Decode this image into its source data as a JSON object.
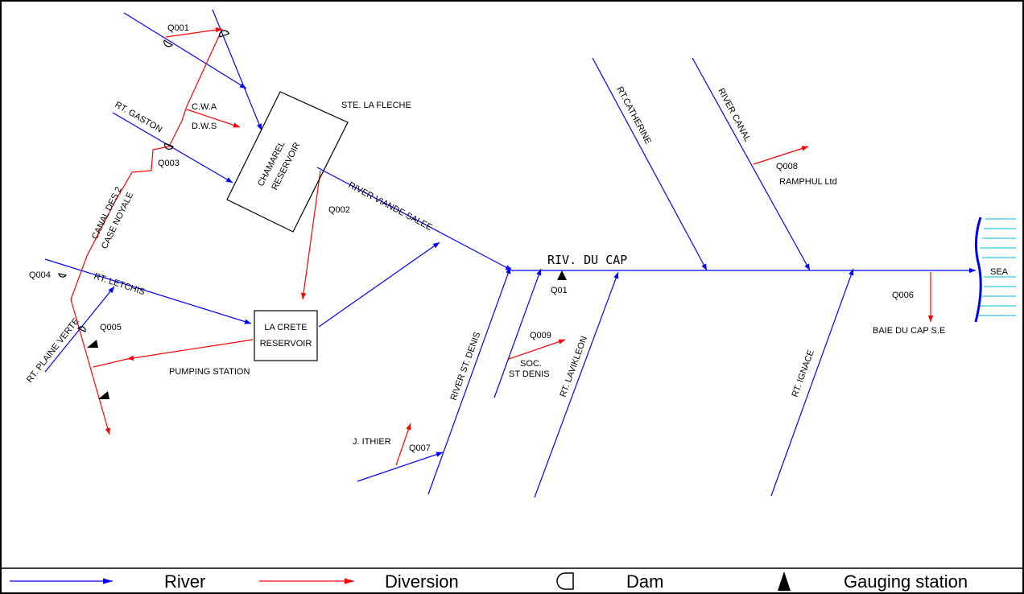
{
  "reservoirs": {
    "chamarel": [
      "CHAMAREL",
      "RESERVOIR"
    ],
    "lacrete": [
      "LA CRETE",
      "RESERVOIR"
    ]
  },
  "places": {
    "ste_la_fleche": "STE. LA FLECHE",
    "pumping_station": "PUMPING STATION",
    "ramphul": "RAMPHUL Ltd",
    "baie": "BAIE DU CAP S.E",
    "sea": "SEA",
    "jithier": "J. ITHIER",
    "soc_line1": "SOC.",
    "soc_line2": "ST DENIS",
    "cwa": "C.W.A",
    "dws": "D.W.S"
  },
  "rivers": {
    "main": "RIV. DU CAP",
    "viande_salee": "RIVER VIANDE SALEE",
    "gaston": "RT. GASTON",
    "letchis": "RT. LETCHIS",
    "plaine_verte": "RT. PLAINE VERTE",
    "canal_des_2": "CANAL DES 2",
    "case_noyale": "CASE NOYALE",
    "catherine": "RT.CATHERINE",
    "river_canal": "RIVER CANAL",
    "st_denis": "RIVER ST. DENIS",
    "lavikleon": "RT. LAVIKLEON",
    "ignace": "RT. IGNACE"
  },
  "codes": {
    "q001": "Q001",
    "q002": "Q002",
    "q003": "Q003",
    "q004": "Q004",
    "q005": "Q005",
    "q006": "Q006",
    "q007": "Q007",
    "q008": "Q008",
    "q009": "Q009",
    "q01": "Q01"
  },
  "legend": {
    "river": "River",
    "diversion": "Diversion",
    "dam": "Dam",
    "gauging": "Gauging station"
  },
  "colors": {
    "river": "#0000ff",
    "diversion": "#ff0000",
    "structure": "#000000",
    "sea": "#00bcd4"
  },
  "icons": {
    "dam": "dam-icon",
    "gauging": "gauging-station-icon"
  }
}
